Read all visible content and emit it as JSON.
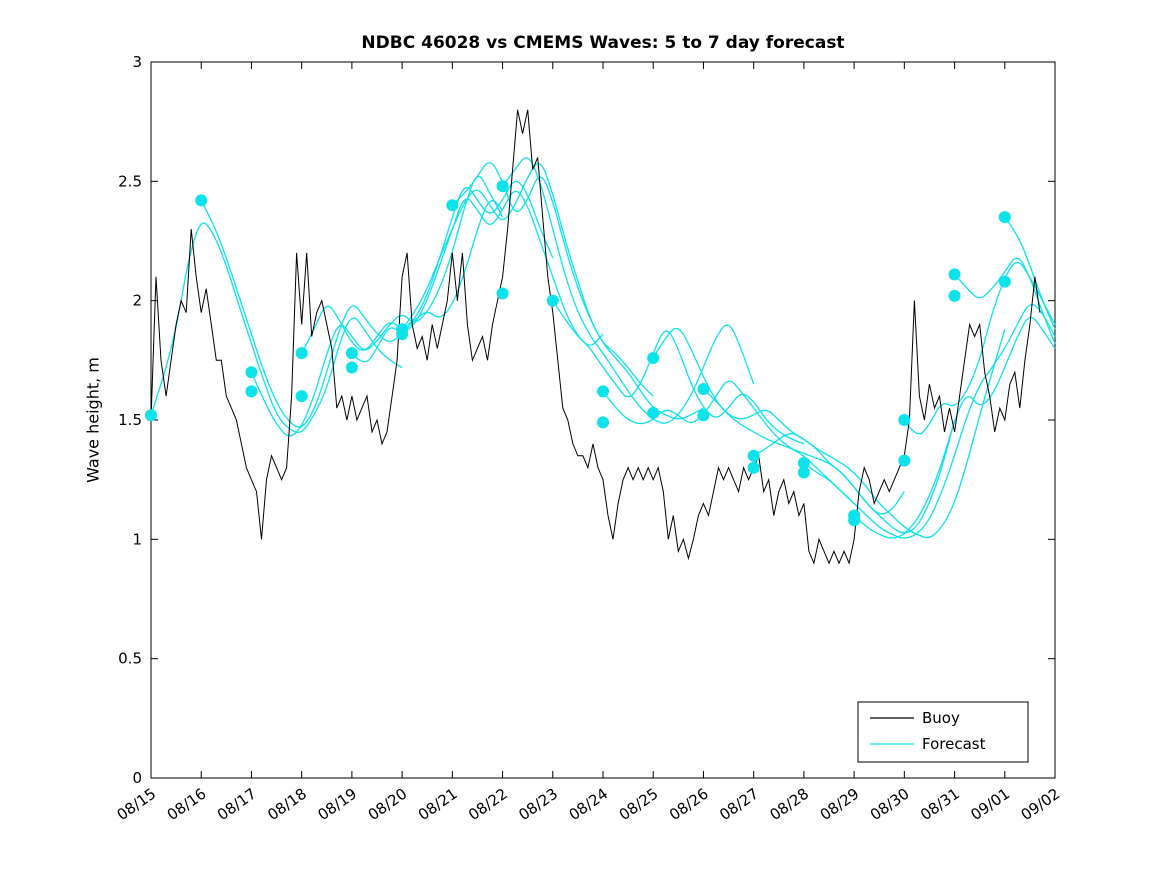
{
  "chart_data": {
    "type": "line",
    "title": "NDBC 46028 vs CMEMS Waves: 5 to 7 day forecast",
    "xlabel": "",
    "ylabel": "Wave height, m",
    "ylim": [
      0,
      3
    ],
    "x_days": 18,
    "grid": false,
    "yticks": [
      0,
      0.5,
      1,
      1.5,
      2,
      2.5,
      3
    ],
    "ytick_labels": [
      "0",
      "0.5",
      "1",
      "1.5",
      "2",
      "2.5",
      "3"
    ],
    "xtick_labels": [
      "08/15",
      "08/16",
      "08/17",
      "08/18",
      "08/19",
      "08/20",
      "08/21",
      "08/22",
      "08/23",
      "08/24",
      "08/25",
      "08/26",
      "08/27",
      "08/28",
      "08/29",
      "08/30",
      "08/31",
      "09/01",
      "09/02"
    ],
    "series": [
      {
        "name": "Buoy",
        "color": "#000000",
        "t0": 0,
        "dt": 0.1,
        "values": [
          1.5,
          2.1,
          1.75,
          1.6,
          1.75,
          1.9,
          2.0,
          1.95,
          2.3,
          2.1,
          1.95,
          2.05,
          1.9,
          1.75,
          1.75,
          1.6,
          1.55,
          1.5,
          1.4,
          1.3,
          1.25,
          1.2,
          1.0,
          1.25,
          1.35,
          1.3,
          1.25,
          1.3,
          1.6,
          2.2,
          1.9,
          2.2,
          1.85,
          1.95,
          2.0,
          1.9,
          1.8,
          1.55,
          1.6,
          1.5,
          1.6,
          1.5,
          1.55,
          1.6,
          1.45,
          1.5,
          1.4,
          1.45,
          1.6,
          1.75,
          2.1,
          2.2,
          1.9,
          1.8,
          1.85,
          1.75,
          1.9,
          1.8,
          1.9,
          2.0,
          2.2,
          2.0,
          2.2,
          1.9,
          1.75,
          1.8,
          1.85,
          1.75,
          1.9,
          2.0,
          2.1,
          2.3,
          2.55,
          2.8,
          2.7,
          2.8,
          2.55,
          2.6,
          2.35,
          2.1,
          1.95,
          1.75,
          1.55,
          1.5,
          1.4,
          1.35,
          1.35,
          1.3,
          1.4,
          1.3,
          1.25,
          1.1,
          1.0,
          1.15,
          1.25,
          1.3,
          1.25,
          1.3,
          1.25,
          1.3,
          1.25,
          1.3,
          1.2,
          1.0,
          1.1,
          0.95,
          1.0,
          0.92,
          1.0,
          1.1,
          1.15,
          1.1,
          1.2,
          1.3,
          1.25,
          1.3,
          1.25,
          1.2,
          1.3,
          1.25,
          1.3,
          1.35,
          1.2,
          1.25,
          1.1,
          1.2,
          1.25,
          1.15,
          1.2,
          1.1,
          1.15,
          0.95,
          0.9,
          1.0,
          0.95,
          0.9,
          0.95,
          0.9,
          0.95,
          0.9,
          1.0,
          1.2,
          1.3,
          1.25,
          1.15,
          1.2,
          1.25,
          1.2,
          1.25,
          1.3,
          1.35,
          1.5,
          2.0,
          1.6,
          1.5,
          1.65,
          1.55,
          1.6,
          1.45,
          1.55,
          1.45,
          1.6,
          1.75,
          1.9,
          1.85,
          1.9,
          1.7,
          1.6,
          1.45,
          1.55,
          1.5,
          1.65,
          1.7,
          1.55,
          1.75,
          1.9,
          2.1,
          1.95
        ]
      },
      {
        "name": "Forecast",
        "color": "#0ce2ea",
        "curves": [
          {
            "t0": 0,
            "dt": 0.25,
            "values": [
              1.52,
              1.68,
              1.88,
              2.18,
              2.35,
              2.28,
              2.15,
              1.98,
              1.82,
              1.66,
              1.52,
              1.46,
              1.44,
              1.52,
              1.63,
              1.82,
              1.95,
              1.88,
              1.8,
              1.75,
              1.72
            ]
          },
          {
            "t0": 1,
            "dt": 0.25,
            "values": [
              2.42,
              2.32,
              2.18,
              2.02,
              1.86,
              1.7,
              1.57,
              1.49,
              1.46,
              1.54,
              1.7,
              1.88,
              2.0,
              1.93,
              1.86,
              1.82,
              1.86,
              1.92,
              1.96,
              1.92,
              1.98,
              2.12,
              2.3,
              2.44,
              2.38
            ]
          },
          {
            "t0": 2,
            "dt": 0.25,
            "values": [
              1.7,
              1.58,
              1.48,
              1.42,
              1.47,
              1.6,
              1.78,
              1.92,
              1.85,
              1.78,
              1.83,
              1.9,
              1.95,
              1.9,
              1.95,
              2.05,
              2.2,
              2.4,
              2.55,
              2.45,
              2.35
            ]
          },
          {
            "t0": 3,
            "dt": 0.25,
            "values": [
              1.78,
              1.88,
              2.0,
              1.92,
              1.82,
              1.78,
              1.85,
              1.92,
              1.88,
              1.92,
              2.02,
              2.18,
              2.35,
              2.5,
              2.42,
              2.35,
              2.42,
              2.52,
              2.45,
              2.3,
              2.18
            ]
          },
          {
            "t0": 4,
            "dt": 0.25,
            "values": [
              1.78,
              1.72,
              1.8,
              1.9,
              1.86,
              1.9,
              2.0,
              2.15,
              2.3,
              2.45,
              2.38,
              2.3,
              2.38,
              2.48,
              2.4,
              2.25,
              2.1,
              1.95,
              1.85,
              1.8,
              1.86
            ]
          },
          {
            "t0": 5,
            "dt": 0.25,
            "values": [
              1.88,
              1.95,
              2.05,
              2.18,
              2.3,
              2.42,
              2.48,
              2.4,
              2.32,
              2.4,
              2.52,
              2.6,
              2.45,
              2.25,
              2.08,
              1.92,
              1.82,
              1.78,
              1.72,
              1.65,
              1.6
            ]
          },
          {
            "t0": 6,
            "dt": 0.25,
            "values": [
              2.4,
              2.45,
              2.52,
              2.6,
              2.5,
              2.35,
              2.42,
              2.55,
              2.42,
              2.22,
              2.05,
              1.92,
              1.82,
              1.76,
              1.7,
              1.62,
              1.55,
              1.52,
              1.5,
              1.52,
              1.55
            ]
          },
          {
            "t0": 7,
            "dt": 0.25,
            "values": [
              2.48,
              2.55,
              2.62,
              2.5,
              2.3,
              2.1,
              1.95,
              1.85,
              1.78,
              1.7,
              1.62,
              1.55,
              1.5,
              1.48,
              1.52,
              1.6,
              1.72,
              1.85,
              1.92,
              1.8,
              1.65
            ]
          },
          {
            "t0": 8,
            "dt": 0.25,
            "values": [
              2.0,
              1.92,
              1.85,
              1.8,
              1.72,
              1.65,
              1.58,
              1.65,
              1.78,
              1.9,
              1.8,
              1.65,
              1.55,
              1.5,
              1.55,
              1.62,
              1.58,
              1.5,
              1.45,
              1.42,
              1.4
            ]
          },
          {
            "t0": 9,
            "dt": 0.25,
            "values": [
              1.62,
              1.55,
              1.5,
              1.48,
              1.5,
              1.55,
              1.52,
              1.48,
              1.52,
              1.6,
              1.68,
              1.62,
              1.55,
              1.48,
              1.42,
              1.38,
              1.35,
              1.3,
              1.25,
              1.2,
              1.15
            ]
          },
          {
            "t0": 10,
            "dt": 0.25,
            "values": [
              1.76,
              1.85,
              1.9,
              1.8,
              1.68,
              1.58,
              1.52,
              1.48,
              1.45,
              1.42,
              1.4,
              1.38,
              1.36,
              1.34,
              1.32,
              1.28,
              1.22,
              1.15,
              1.1,
              1.12,
              1.2
            ]
          },
          {
            "t0": 11,
            "dt": 0.25,
            "values": [
              1.63,
              1.58,
              1.52,
              1.5,
              1.52,
              1.55,
              1.5,
              1.45,
              1.42,
              1.38,
              1.32,
              1.28,
              1.22,
              1.15,
              1.1,
              1.05,
              1.02,
              1.05,
              1.15,
              1.3,
              1.5
            ]
          },
          {
            "t0": 12,
            "dt": 0.25,
            "values": [
              1.35,
              1.38,
              1.42,
              1.45,
              1.42,
              1.38,
              1.35,
              1.32,
              1.28,
              1.22,
              1.15,
              1.1,
              1.05,
              1.02,
              1.0,
              1.05,
              1.15,
              1.32,
              1.52,
              1.7,
              1.88
            ]
          },
          {
            "t0": 13,
            "dt": 0.25,
            "values": [
              1.32,
              1.28,
              1.25,
              1.2,
              1.15,
              1.1,
              1.05,
              1.02,
              1.0,
              1.02,
              1.08,
              1.2,
              1.35,
              1.52,
              1.65,
              1.72,
              1.8,
              1.9,
              2.0,
              1.95,
              1.85
            ]
          },
          {
            "t0": 14,
            "dt": 0.25,
            "values": [
              1.1,
              1.05,
              1.02,
              1.0,
              1.02,
              1.08,
              1.18,
              1.32,
              1.5,
              1.62,
              1.55,
              1.6,
              1.72,
              1.85,
              1.95,
              1.88,
              1.8
            ]
          },
          {
            "t0": 15,
            "dt": 0.25,
            "values": [
              1.5,
              1.42,
              1.48,
              1.58,
              1.55,
              1.62,
              1.75,
              1.95,
              2.1,
              2.18,
              2.1,
              2.0,
              1.9
            ]
          },
          {
            "t0": 16,
            "dt": 0.25,
            "values": [
              2.11,
              2.05,
              2.0,
              2.05,
              2.12,
              2.2,
              2.1,
              1.95,
              1.82
            ]
          },
          {
            "t0": 17,
            "dt": 0.25,
            "values": [
              2.35,
              2.28,
              2.15,
              2.0,
              1.88
            ]
          }
        ]
      }
    ],
    "markers": {
      "color": "#0ce2ea",
      "points": [
        [
          0,
          1.52
        ],
        [
          1,
          2.42
        ],
        [
          2,
          1.7
        ],
        [
          2,
          1.62
        ],
        [
          3,
          1.78
        ],
        [
          3,
          1.6
        ],
        [
          4,
          1.78
        ],
        [
          4,
          1.72
        ],
        [
          5,
          1.88
        ],
        [
          5,
          1.86
        ],
        [
          6,
          2.4
        ],
        [
          7,
          2.48
        ],
        [
          7,
          2.03
        ],
        [
          8,
          2.0
        ],
        [
          9,
          1.62
        ],
        [
          9,
          1.49
        ],
        [
          10,
          1.76
        ],
        [
          10,
          1.53
        ],
        [
          11,
          1.63
        ],
        [
          11,
          1.52
        ],
        [
          12,
          1.35
        ],
        [
          12,
          1.3
        ],
        [
          13,
          1.32
        ],
        [
          13,
          1.28
        ],
        [
          14,
          1.1
        ],
        [
          14,
          1.08
        ],
        [
          15,
          1.5
        ],
        [
          15,
          1.33
        ],
        [
          16,
          2.11
        ],
        [
          16,
          2.02
        ],
        [
          17,
          2.35
        ],
        [
          17,
          2.08
        ]
      ]
    },
    "legend": {
      "position": "southeast",
      "entries": [
        {
          "label": "Buoy",
          "color": "#000000"
        },
        {
          "label": "Forecast",
          "color": "#0ce2ea"
        }
      ]
    }
  }
}
